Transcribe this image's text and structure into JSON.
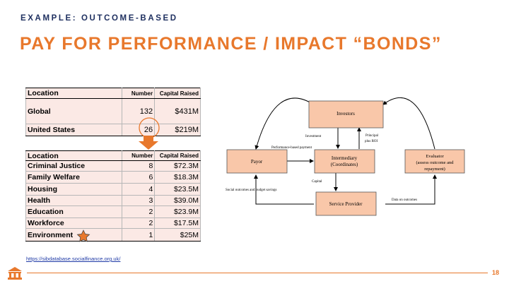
{
  "header": {
    "kicker": "EXAMPLE: OUTCOME-BASED",
    "title": "PAY FOR PERFORMANCE / IMPACT “BONDS”"
  },
  "table1": {
    "columns": [
      "Location",
      "Number",
      "Capital Raised"
    ],
    "rows": [
      {
        "location": "Global",
        "number": "132",
        "capital": "$431M"
      },
      {
        "location": "United States",
        "number": "26",
        "capital": "$219M"
      }
    ]
  },
  "table2": {
    "columns": [
      "Location",
      "Number",
      "Capital Raised"
    ],
    "rows": [
      {
        "location": "Criminal Justice",
        "number": "8",
        "capital": "$72.3M"
      },
      {
        "location": "Family Welfare",
        "number": "6",
        "capital": "$18.3M"
      },
      {
        "location": "Housing",
        "number": "4",
        "capital": "$23.5M"
      },
      {
        "location": "Health",
        "number": "3",
        "capital": "$39.0M"
      },
      {
        "location": "Education",
        "number": "2",
        "capital": "$23.9M"
      },
      {
        "location": "Workforce",
        "number": "2",
        "capital": "$17.5M"
      },
      {
        "location": "Environment",
        "number": "1",
        "capital": "$25M"
      }
    ]
  },
  "source_url": "https://sibdatabase.socialfinance.org.uk/",
  "diagram": {
    "investors": "Investors",
    "payor": "Payor",
    "intermediary_line1": "Intermediary",
    "intermediary_line2": "(Coordinates)",
    "evaluator_line1": "Evaluator",
    "evaluator_line2": "(assess outcome and",
    "evaluator_line3": "repayment)",
    "service_provider": "Service Provider",
    "investment": "Investment",
    "principal_line1": "Principal",
    "principal_line2": "plus ROI",
    "performance_payment": "Performance-based payment",
    "capital": "Capital",
    "social_outcomes": "Social outcomes and budget savings",
    "data_on_outcomes": "Data on outcomes"
  },
  "page_number": "18",
  "colors": {
    "accent_orange": "#e8782c",
    "navy": "#1f3060",
    "box_fill": "#f9c7a9",
    "table_fill": "#fbe9e5"
  },
  "icons": {
    "highlight": "orange-circle-highlight",
    "arrow": "down-arrow-icon",
    "star": "star-icon",
    "logo": "university-logo-icon"
  }
}
